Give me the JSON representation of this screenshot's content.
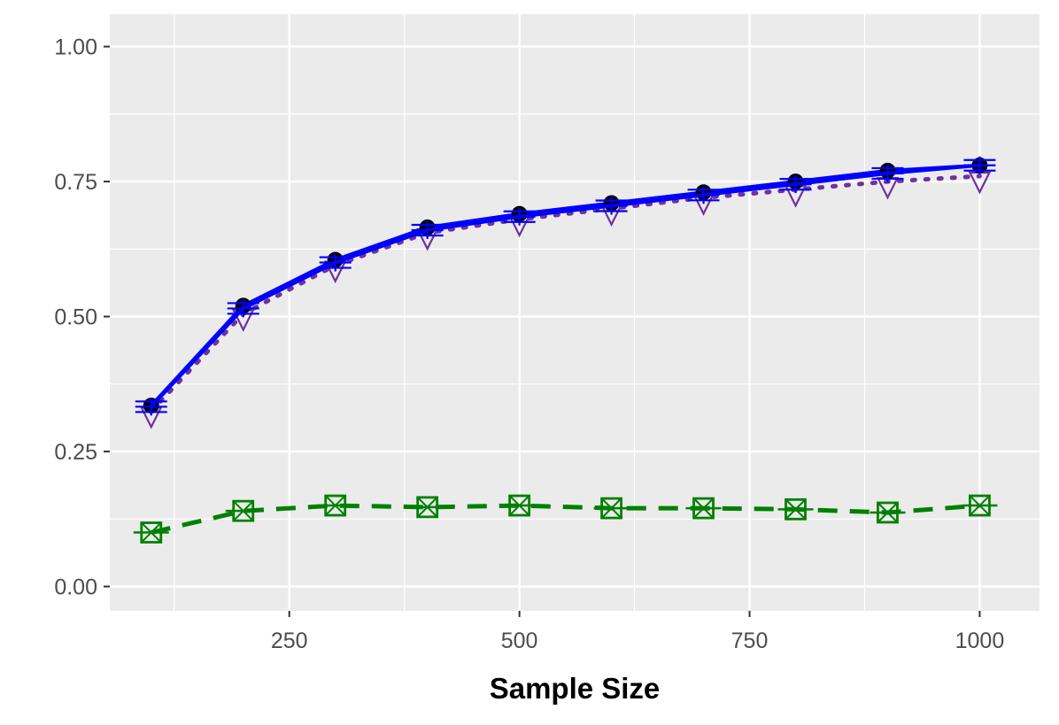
{
  "chart_data": {
    "type": "line",
    "title": "",
    "xlabel": "Sample Size",
    "ylabel": "",
    "xlim": [
      55,
      1065
    ],
    "ylim": [
      -0.045,
      1.06
    ],
    "x_ticks": [
      250,
      500,
      750,
      1000
    ],
    "x_tick_labels": [
      "250",
      "500",
      "750",
      "1000"
    ],
    "y_ticks": [
      0.0,
      0.25,
      0.5,
      0.75,
      1.0
    ],
    "y_tick_labels": [
      "0.00",
      "0.25",
      "0.50",
      "0.75",
      "1.00"
    ],
    "grid": true,
    "legend": "none",
    "x": [
      100,
      200,
      300,
      400,
      500,
      600,
      700,
      800,
      900,
      1000
    ],
    "series": [
      {
        "line_color": "#0000ff",
        "marker_color": "#000000",
        "line_style": "solid",
        "marker": "filled-circle",
        "values": [
          0.335,
          0.52,
          0.605,
          0.665,
          0.69,
          0.71,
          0.73,
          0.75,
          0.77,
          0.78
        ]
      },
      {
        "line_color": "#0000ff",
        "marker_color": "#0000ff",
        "line_style": "solid",
        "marker": "plus-bars",
        "values": [
          0.333,
          0.515,
          0.6,
          0.66,
          0.685,
          0.705,
          0.725,
          0.745,
          0.765,
          0.78
        ]
      },
      {
        "line_color": "#7030a0",
        "marker_color": "#7030a0",
        "line_style": "dotted",
        "marker": "triangle-down",
        "values": [
          0.325,
          0.505,
          0.595,
          0.655,
          0.68,
          0.7,
          0.72,
          0.735,
          0.75,
          0.76
        ]
      },
      {
        "line_color": "#008000",
        "marker_color": "#008000",
        "line_style": "dashed",
        "marker": "square-cross",
        "values": [
          0.1,
          0.14,
          0.15,
          0.147,
          0.15,
          0.145,
          0.145,
          0.143,
          0.137,
          0.15
        ]
      }
    ]
  }
}
